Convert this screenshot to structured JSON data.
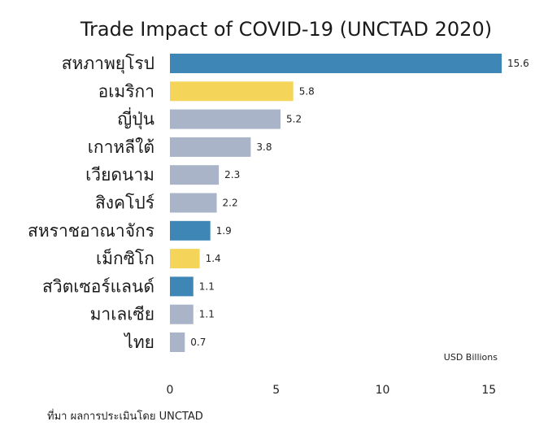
{
  "chart_data": {
    "type": "bar",
    "orientation": "horizontal",
    "title": "Trade Impact of COVID-19 (UNCTAD 2020)",
    "unit_label": "USD Billions",
    "source": "ที่มา ผลการประเมินโดย UNCTAD",
    "xlim": [
      0,
      16
    ],
    "ticks": [
      0,
      5,
      10,
      15
    ],
    "grid": false,
    "legend": "none",
    "categories": [
      "สหภาพยุโรป",
      "อเมริกา",
      "ญี่ปุ่น",
      "เกาหลีใต้",
      "เวียดนาม",
      "สิงคโปร์",
      "สหราชอาณาจักร",
      "เม็กซิโก",
      "สวิตเซอร์แลนด์",
      "มาเลเซีย",
      "ไทย"
    ],
    "values": [
      15.6,
      5.8,
      5.2,
      3.8,
      2.3,
      2.2,
      1.9,
      1.4,
      1.1,
      1.1,
      0.7
    ],
    "value_labels": [
      "15.6",
      "5.8",
      "5.2",
      "3.8",
      "2.3",
      "2.2",
      "1.9",
      "1.4",
      "1.1",
      "1.1",
      "0.7"
    ],
    "colors": [
      "#3e86b6",
      "#f5d45a",
      "#a9b4c8",
      "#a9b4c8",
      "#a9b4c8",
      "#a9b4c8",
      "#3e86b6",
      "#f5d45a",
      "#3e86b6",
      "#a9b4c8",
      "#a9b4c8"
    ]
  }
}
